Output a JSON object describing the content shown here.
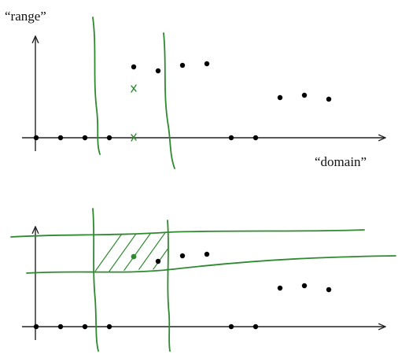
{
  "labels": {
    "range": "“range”",
    "domain": "“domain”"
  },
  "colors": {
    "ink": "#000000",
    "marker": "#2f8a2f"
  }
}
